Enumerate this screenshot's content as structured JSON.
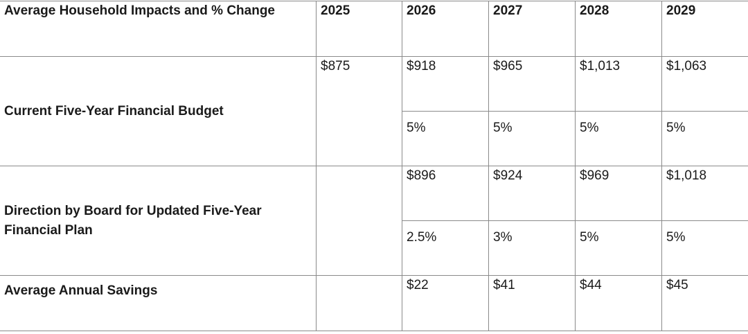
{
  "table": {
    "header": {
      "label": "Average Household Impacts and % Change",
      "years": [
        "2025",
        "2026",
        "2027",
        "2028",
        "2029"
      ]
    },
    "current_budget": {
      "label": "Current Five-Year Financial Budget",
      "values": [
        "$875",
        "$918",
        "$965",
        "$1,013",
        "$1,063"
      ],
      "changes": [
        "",
        "5%",
        "5%",
        "5%",
        "5%"
      ]
    },
    "board_direction": {
      "label_line1": "Direction by Board for Updated Five-Year",
      "label_line2": "Financial Plan",
      "values": [
        "",
        "$896",
        "$924",
        "$969",
        "$1,018"
      ],
      "changes": [
        "",
        "2.5%",
        "3%",
        "5%",
        "5%"
      ]
    },
    "savings": {
      "label": "Average Annual Savings",
      "values": [
        "",
        "$22",
        "$41",
        "$44",
        "$45"
      ]
    }
  }
}
